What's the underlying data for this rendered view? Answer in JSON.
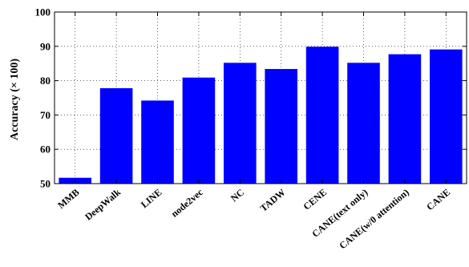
{
  "chart_data": {
    "type": "bar",
    "title": "",
    "xlabel": "",
    "ylabel": "Accuracy (× 100)",
    "ylim": [
      50,
      100
    ],
    "yticks": [
      50,
      60,
      70,
      80,
      90,
      100
    ],
    "grid": true,
    "bar_color": "#0000ff",
    "categories": [
      "MMB",
      "DeepWalk",
      "LINE",
      "node2vec",
      "NC",
      "TADW",
      "CENE",
      "CANE(text only)",
      "CANE(w/0 attention)",
      "CANE"
    ],
    "values": [
      51.7,
      77.8,
      74.2,
      80.9,
      85.2,
      83.4,
      89.9,
      85.2,
      87.7,
      89.1
    ]
  }
}
